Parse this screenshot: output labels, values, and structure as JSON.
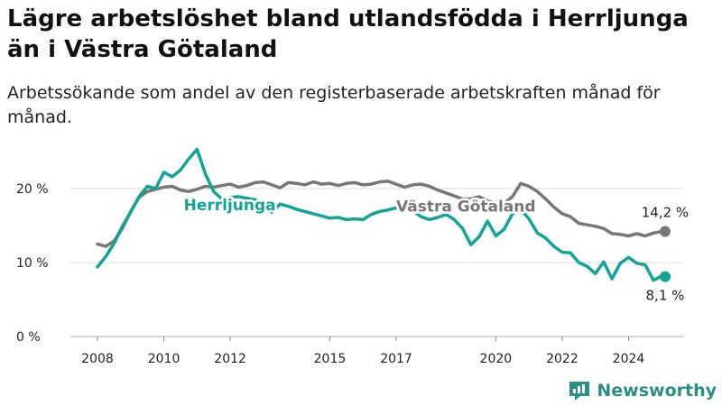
{
  "title": "Lägre arbetslöshet bland utlandsfödda i Herrljunga än i Västra Götaland",
  "subtitle": "Arbetssökande som andel av den registerbaserade arbetskraften månad för månad.",
  "brand": "Newsworthy",
  "chart_data": {
    "type": "line",
    "y_unit": "%",
    "ylim": [
      0,
      25
    ],
    "xlim": [
      2008,
      2025.4
    ],
    "y_ticks": [
      {
        "value": 0,
        "label": "0 %"
      },
      {
        "value": 10,
        "label": "10 %"
      },
      {
        "value": 20,
        "label": "20 %"
      }
    ],
    "x_ticks": [
      {
        "value": 2008,
        "label": "2008"
      },
      {
        "value": 2010,
        "label": "2010"
      },
      {
        "value": 2012,
        "label": "2012"
      },
      {
        "value": 2015,
        "label": "2015"
      },
      {
        "value": 2017,
        "label": "2017"
      },
      {
        "value": 2020,
        "label": "2020"
      },
      {
        "value": 2022,
        "label": "2022"
      },
      {
        "value": 2024,
        "label": "2024"
      }
    ],
    "grid": true,
    "legend": "inline labels on lines",
    "series": [
      {
        "name": "Västra Götaland",
        "color": "#777777",
        "end_label": "14,2 %",
        "x": [
          2008,
          2008.25,
          2008.5,
          2008.75,
          2009,
          2009.25,
          2009.5,
          2009.75,
          2010,
          2010.25,
          2010.5,
          2010.75,
          2011,
          2011.25,
          2011.5,
          2011.75,
          2012,
          2012.25,
          2012.5,
          2012.75,
          2013,
          2013.25,
          2013.5,
          2013.75,
          2014,
          2014.25,
          2014.5,
          2014.75,
          2015,
          2015.25,
          2015.5,
          2015.75,
          2016,
          2016.25,
          2016.5,
          2016.75,
          2017,
          2017.25,
          2017.5,
          2017.75,
          2018,
          2018.25,
          2018.5,
          2018.75,
          2019,
          2019.25,
          2019.5,
          2019.75,
          2020,
          2020.25,
          2020.5,
          2020.75,
          2021,
          2021.25,
          2021.5,
          2021.75,
          2022,
          2022.25,
          2022.5,
          2022.75,
          2023,
          2023.25,
          2023.5,
          2023.75,
          2024,
          2024.25,
          2024.5,
          2024.75,
          2025,
          2025.1
        ],
        "values": [
          12.5,
          12.2,
          12.9,
          14.6,
          16.9,
          18.8,
          19.6,
          19.9,
          20.2,
          20.3,
          19.8,
          19.6,
          19.9,
          20.3,
          20.2,
          20.4,
          20.6,
          20.2,
          20.4,
          20.8,
          20.9,
          20.5,
          20.1,
          20.8,
          20.7,
          20.5,
          20.9,
          20.6,
          20.7,
          20.4,
          20.7,
          20.8,
          20.5,
          20.6,
          20.9,
          21.0,
          20.6,
          20.2,
          20.5,
          20.6,
          20.3,
          19.8,
          19.4,
          19.0,
          18.6,
          18.6,
          18.9,
          18.3,
          18.1,
          18.0,
          18.9,
          20.7,
          20.3,
          19.6,
          18.6,
          17.5,
          16.6,
          16.2,
          15.3,
          15.1,
          14.9,
          14.6,
          13.9,
          13.8,
          13.6,
          13.9,
          13.6,
          14.0,
          14.2,
          14.2
        ]
      },
      {
        "name": "Herrljunga",
        "color": "#12a497",
        "end_label": "8,1 %",
        "x": [
          2008,
          2008.25,
          2008.5,
          2008.75,
          2009,
          2009.25,
          2009.5,
          2009.75,
          2010,
          2010.25,
          2010.5,
          2010.75,
          2011,
          2011.25,
          2011.5,
          2011.75,
          2012,
          2012.25,
          2012.5,
          2012.75,
          2013,
          2013.25,
          2013.5,
          2013.75,
          2014,
          2014.25,
          2014.5,
          2014.75,
          2015,
          2015.25,
          2015.5,
          2015.75,
          2016,
          2016.25,
          2016.5,
          2016.75,
          2017,
          2017.25,
          2017.5,
          2017.75,
          2018,
          2018.25,
          2018.5,
          2018.75,
          2019,
          2019.25,
          2019.5,
          2019.75,
          2020,
          2020.25,
          2020.5,
          2020.75,
          2021,
          2021.25,
          2021.5,
          2021.75,
          2022,
          2022.25,
          2022.5,
          2022.75,
          2023,
          2023.25,
          2023.5,
          2023.75,
          2024,
          2024.25,
          2024.5,
          2024.75,
          2025,
          2025.1
        ],
        "values": [
          9.4,
          10.8,
          12.6,
          14.9,
          16.8,
          18.9,
          20.3,
          20.0,
          22.2,
          21.6,
          22.5,
          24.0,
          25.3,
          22.0,
          19.6,
          18.6,
          18.8,
          18.9,
          18.7,
          18.5,
          17.9,
          16.8,
          17.9,
          17.6,
          17.2,
          16.9,
          16.6,
          16.3,
          16.0,
          16.1,
          15.8,
          15.9,
          15.8,
          16.5,
          16.9,
          17.1,
          17.4,
          17.6,
          17.0,
          16.2,
          15.8,
          16.1,
          16.5,
          15.8,
          14.6,
          12.4,
          13.5,
          15.6,
          13.6,
          14.5,
          16.6,
          17.2,
          15.9,
          14.0,
          13.3,
          12.2,
          11.4,
          11.3,
          10.0,
          9.5,
          8.5,
          10.1,
          7.8,
          9.9,
          10.7,
          9.9,
          9.7,
          7.6,
          8.2,
          8.1
        ]
      }
    ]
  }
}
